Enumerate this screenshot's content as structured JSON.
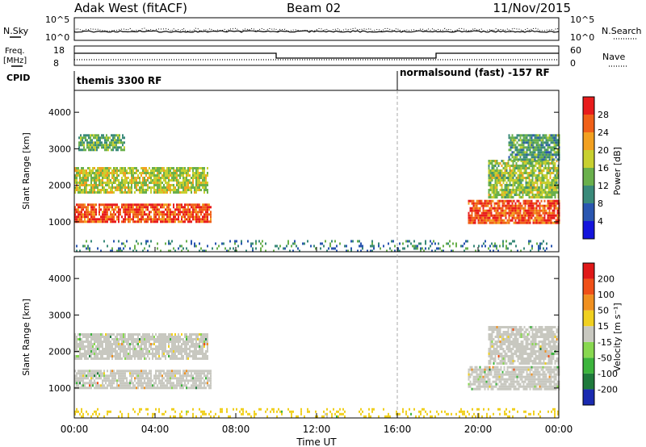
{
  "header": {
    "radar": "Adak West (fitACF)",
    "beam": "Beam 02",
    "date": "11/Nov/2015"
  },
  "status_panel": {
    "nsky_label": "N.Sky",
    "nsearch_label": "N.Search",
    "noise_ticks": [
      "10^5",
      "10^0"
    ],
    "freq_label_1": "Freq.",
    "freq_label_2": "[MHz]",
    "freq_ticks": [
      "18",
      "8"
    ],
    "nave_label": "Nave",
    "nave_ticks": [
      "60",
      "0"
    ],
    "cpid_label": "CPID",
    "cpid_segments": [
      {
        "start_hour": 0,
        "end_hour": 16,
        "label": "themis 3300 RF"
      },
      {
        "start_hour": 16,
        "end_hour": 24,
        "label": "normalsound (fast) -157 RF"
      }
    ]
  },
  "chart_data": [
    {
      "type": "heatmap",
      "name": "power",
      "ylabel": "Slant Range [km]",
      "ylim": [
        180,
        4600
      ],
      "yticks": [
        1000,
        2000,
        3000,
        4000
      ],
      "xlim": [
        0,
        24
      ],
      "colorbar": {
        "label": "Power [dB]",
        "range": [
          0,
          32
        ],
        "ticks": [
          "28",
          "24",
          "20",
          "16",
          "12",
          "8",
          "4"
        ],
        "colors": [
          "#1414dc",
          "#2a56b0",
          "#3a8a7a",
          "#6ab04c",
          "#c8d030",
          "#f2a020",
          "#f06018",
          "#e81c1c"
        ]
      },
      "echo_regions": [
        {
          "t0": 0.0,
          "t1": 6.8,
          "r0": 1000,
          "r1": 1500,
          "level_db": 27
        },
        {
          "t0": 0.0,
          "t1": 6.6,
          "r0": 1800,
          "r1": 2500,
          "level_db": 17
        },
        {
          "t0": 0.2,
          "t1": 2.5,
          "r0": 3000,
          "r1": 3400,
          "level_db": 13
        },
        {
          "t0": 19.5,
          "t1": 24.0,
          "r0": 1000,
          "r1": 1600,
          "level_db": 27
        },
        {
          "t0": 20.5,
          "t1": 24.0,
          "r0": 1700,
          "r1": 2700,
          "level_db": 16
        },
        {
          "t0": 21.5,
          "t1": 24.0,
          "r0": 2700,
          "r1": 3400,
          "level_db": 12
        },
        {
          "t0": 0.0,
          "t1": 24.0,
          "r0": 200,
          "r1": 500,
          "level_db": 10
        }
      ]
    },
    {
      "type": "heatmap",
      "name": "velocity",
      "ylabel": "Slant Range [km]",
      "xlabel": "Time UT",
      "ylim": [
        180,
        4600
      ],
      "yticks": [
        1000,
        2000,
        3000,
        4000
      ],
      "xlim": [
        0,
        24
      ],
      "xticks": [
        "00:00",
        "04:00",
        "08:00",
        "12:00",
        "16:00",
        "20:00",
        "00:00"
      ],
      "colorbar": {
        "label": "Velocity [m s⁻¹]",
        "range": [
          -250,
          250
        ],
        "ticks": [
          "200",
          "100",
          "50",
          "15",
          "-15",
          "-50",
          "-100",
          "-200"
        ],
        "colors": [
          "#1a2ab0",
          "#1f7a3c",
          "#3cb43c",
          "#88d850",
          "#c8c8c0",
          "#f0d020",
          "#f09020",
          "#f05018",
          "#e01818"
        ]
      },
      "echo_regions": [
        {
          "t0": 0.0,
          "t1": 6.8,
          "r0": 1000,
          "r1": 1500,
          "velocity": 0
        },
        {
          "t0": 0.0,
          "t1": 6.6,
          "r0": 1800,
          "r1": 2500,
          "velocity": 0
        },
        {
          "t0": 19.5,
          "t1": 24.0,
          "r0": 1000,
          "r1": 1600,
          "velocity": 0
        },
        {
          "t0": 20.5,
          "t1": 24.0,
          "r0": 1700,
          "r1": 2700,
          "velocity": 0
        },
        {
          "t0": 0.0,
          "t1": 24.0,
          "r0": 200,
          "r1": 450,
          "velocity": 40
        }
      ]
    }
  ]
}
